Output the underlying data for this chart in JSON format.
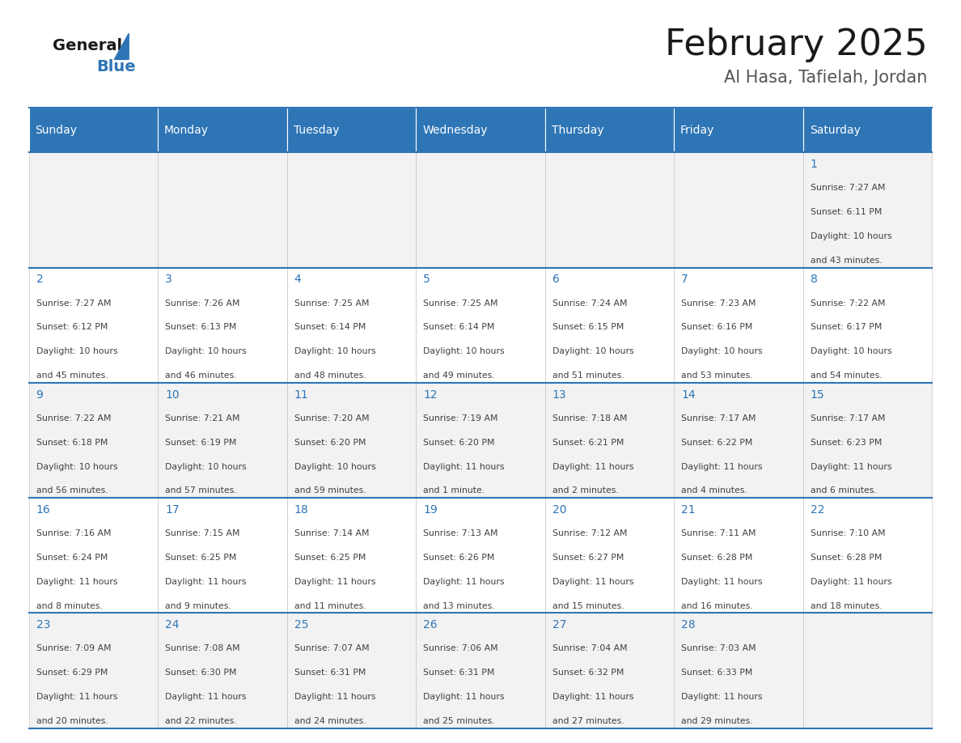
{
  "title": "February 2025",
  "subtitle": "Al Hasa, Tafielah, Jordan",
  "header_bg": "#2E75B6",
  "header_text_color": "#FFFFFF",
  "cell_bg_even": "#F2F2F2",
  "cell_bg_odd": "#FFFFFF",
  "text_color": "#404040",
  "day_number_color": "#2E75B6",
  "border_color": "#2E75B6",
  "inner_border_color": "#BBBBBB",
  "days_of_week": [
    "Sunday",
    "Monday",
    "Tuesday",
    "Wednesday",
    "Thursday",
    "Friday",
    "Saturday"
  ],
  "weeks": [
    [
      {
        "day": null,
        "sunrise": null,
        "sunset": null,
        "daylight_line1": null,
        "daylight_line2": null
      },
      {
        "day": null,
        "sunrise": null,
        "sunset": null,
        "daylight_line1": null,
        "daylight_line2": null
      },
      {
        "day": null,
        "sunrise": null,
        "sunset": null,
        "daylight_line1": null,
        "daylight_line2": null
      },
      {
        "day": null,
        "sunrise": null,
        "sunset": null,
        "daylight_line1": null,
        "daylight_line2": null
      },
      {
        "day": null,
        "sunrise": null,
        "sunset": null,
        "daylight_line1": null,
        "daylight_line2": null
      },
      {
        "day": null,
        "sunrise": null,
        "sunset": null,
        "daylight_line1": null,
        "daylight_line2": null
      },
      {
        "day": "1",
        "sunrise": "Sunrise: 7:27 AM",
        "sunset": "Sunset: 6:11 PM",
        "daylight_line1": "Daylight: 10 hours",
        "daylight_line2": "and 43 minutes."
      }
    ],
    [
      {
        "day": "2",
        "sunrise": "Sunrise: 7:27 AM",
        "sunset": "Sunset: 6:12 PM",
        "daylight_line1": "Daylight: 10 hours",
        "daylight_line2": "and 45 minutes."
      },
      {
        "day": "3",
        "sunrise": "Sunrise: 7:26 AM",
        "sunset": "Sunset: 6:13 PM",
        "daylight_line1": "Daylight: 10 hours",
        "daylight_line2": "and 46 minutes."
      },
      {
        "day": "4",
        "sunrise": "Sunrise: 7:25 AM",
        "sunset": "Sunset: 6:14 PM",
        "daylight_line1": "Daylight: 10 hours",
        "daylight_line2": "and 48 minutes."
      },
      {
        "day": "5",
        "sunrise": "Sunrise: 7:25 AM",
        "sunset": "Sunset: 6:14 PM",
        "daylight_line1": "Daylight: 10 hours",
        "daylight_line2": "and 49 minutes."
      },
      {
        "day": "6",
        "sunrise": "Sunrise: 7:24 AM",
        "sunset": "Sunset: 6:15 PM",
        "daylight_line1": "Daylight: 10 hours",
        "daylight_line2": "and 51 minutes."
      },
      {
        "day": "7",
        "sunrise": "Sunrise: 7:23 AM",
        "sunset": "Sunset: 6:16 PM",
        "daylight_line1": "Daylight: 10 hours",
        "daylight_line2": "and 53 minutes."
      },
      {
        "day": "8",
        "sunrise": "Sunrise: 7:22 AM",
        "sunset": "Sunset: 6:17 PM",
        "daylight_line1": "Daylight: 10 hours",
        "daylight_line2": "and 54 minutes."
      }
    ],
    [
      {
        "day": "9",
        "sunrise": "Sunrise: 7:22 AM",
        "sunset": "Sunset: 6:18 PM",
        "daylight_line1": "Daylight: 10 hours",
        "daylight_line2": "and 56 minutes."
      },
      {
        "day": "10",
        "sunrise": "Sunrise: 7:21 AM",
        "sunset": "Sunset: 6:19 PM",
        "daylight_line1": "Daylight: 10 hours",
        "daylight_line2": "and 57 minutes."
      },
      {
        "day": "11",
        "sunrise": "Sunrise: 7:20 AM",
        "sunset": "Sunset: 6:20 PM",
        "daylight_line1": "Daylight: 10 hours",
        "daylight_line2": "and 59 minutes."
      },
      {
        "day": "12",
        "sunrise": "Sunrise: 7:19 AM",
        "sunset": "Sunset: 6:20 PM",
        "daylight_line1": "Daylight: 11 hours",
        "daylight_line2": "and 1 minute."
      },
      {
        "day": "13",
        "sunrise": "Sunrise: 7:18 AM",
        "sunset": "Sunset: 6:21 PM",
        "daylight_line1": "Daylight: 11 hours",
        "daylight_line2": "and 2 minutes."
      },
      {
        "day": "14",
        "sunrise": "Sunrise: 7:17 AM",
        "sunset": "Sunset: 6:22 PM",
        "daylight_line1": "Daylight: 11 hours",
        "daylight_line2": "and 4 minutes."
      },
      {
        "day": "15",
        "sunrise": "Sunrise: 7:17 AM",
        "sunset": "Sunset: 6:23 PM",
        "daylight_line1": "Daylight: 11 hours",
        "daylight_line2": "and 6 minutes."
      }
    ],
    [
      {
        "day": "16",
        "sunrise": "Sunrise: 7:16 AM",
        "sunset": "Sunset: 6:24 PM",
        "daylight_line1": "Daylight: 11 hours",
        "daylight_line2": "and 8 minutes."
      },
      {
        "day": "17",
        "sunrise": "Sunrise: 7:15 AM",
        "sunset": "Sunset: 6:25 PM",
        "daylight_line1": "Daylight: 11 hours",
        "daylight_line2": "and 9 minutes."
      },
      {
        "day": "18",
        "sunrise": "Sunrise: 7:14 AM",
        "sunset": "Sunset: 6:25 PM",
        "daylight_line1": "Daylight: 11 hours",
        "daylight_line2": "and 11 minutes."
      },
      {
        "day": "19",
        "sunrise": "Sunrise: 7:13 AM",
        "sunset": "Sunset: 6:26 PM",
        "daylight_line1": "Daylight: 11 hours",
        "daylight_line2": "and 13 minutes."
      },
      {
        "day": "20",
        "sunrise": "Sunrise: 7:12 AM",
        "sunset": "Sunset: 6:27 PM",
        "daylight_line1": "Daylight: 11 hours",
        "daylight_line2": "and 15 minutes."
      },
      {
        "day": "21",
        "sunrise": "Sunrise: 7:11 AM",
        "sunset": "Sunset: 6:28 PM",
        "daylight_line1": "Daylight: 11 hours",
        "daylight_line2": "and 16 minutes."
      },
      {
        "day": "22",
        "sunrise": "Sunrise: 7:10 AM",
        "sunset": "Sunset: 6:28 PM",
        "daylight_line1": "Daylight: 11 hours",
        "daylight_line2": "and 18 minutes."
      }
    ],
    [
      {
        "day": "23",
        "sunrise": "Sunrise: 7:09 AM",
        "sunset": "Sunset: 6:29 PM",
        "daylight_line1": "Daylight: 11 hours",
        "daylight_line2": "and 20 minutes."
      },
      {
        "day": "24",
        "sunrise": "Sunrise: 7:08 AM",
        "sunset": "Sunset: 6:30 PM",
        "daylight_line1": "Daylight: 11 hours",
        "daylight_line2": "and 22 minutes."
      },
      {
        "day": "25",
        "sunrise": "Sunrise: 7:07 AM",
        "sunset": "Sunset: 6:31 PM",
        "daylight_line1": "Daylight: 11 hours",
        "daylight_line2": "and 24 minutes."
      },
      {
        "day": "26",
        "sunrise": "Sunrise: 7:06 AM",
        "sunset": "Sunset: 6:31 PM",
        "daylight_line1": "Daylight: 11 hours",
        "daylight_line2": "and 25 minutes."
      },
      {
        "day": "27",
        "sunrise": "Sunrise: 7:04 AM",
        "sunset": "Sunset: 6:32 PM",
        "daylight_line1": "Daylight: 11 hours",
        "daylight_line2": "and 27 minutes."
      },
      {
        "day": "28",
        "sunrise": "Sunrise: 7:03 AM",
        "sunset": "Sunset: 6:33 PM",
        "daylight_line1": "Daylight: 11 hours",
        "daylight_line2": "and 29 minutes."
      },
      {
        "day": null,
        "sunrise": null,
        "sunset": null,
        "daylight_line1": null,
        "daylight_line2": null
      }
    ]
  ],
  "figure_width": 11.88,
  "figure_height": 9.18,
  "figure_dpi": 100,
  "figure_bg": "#FFFFFF",
  "logo_general_color": "#1a1a1a",
  "logo_blue_color": "#2E75B6",
  "logo_triangle_color": "#2E75B6",
  "title_color": "#1a1a1a",
  "subtitle_color": "#555555",
  "title_fontsize": 32,
  "subtitle_fontsize": 15,
  "header_fontsize": 10,
  "day_num_fontsize": 10,
  "cell_text_fontsize": 7.8
}
